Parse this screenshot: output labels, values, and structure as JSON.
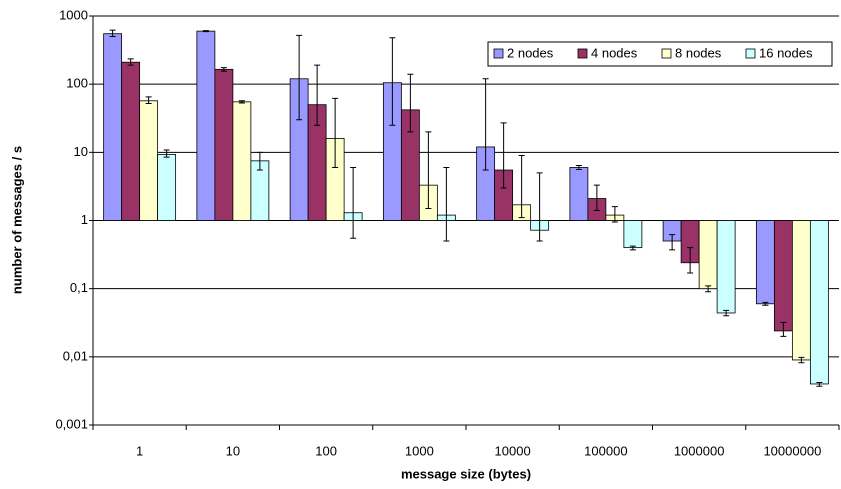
{
  "chart_data": {
    "type": "bar",
    "log_scale": true,
    "grid": true,
    "legend": "top-right",
    "xlabel": "message size (bytes)",
    "ylabel": "number of messages / s",
    "categories": [
      "1",
      "10",
      "100",
      "1000",
      "10000",
      "100000",
      "1000000",
      "10000000"
    ],
    "series": [
      {
        "name": "2 nodes",
        "color": "#9999ff",
        "values": [
          550,
          600,
          120,
          105,
          12,
          6,
          0.5,
          0.06
        ],
        "low": [
          500,
          590,
          30,
          25,
          5.5,
          5.6,
          0.37,
          0.057
        ],
        "high": [
          620,
          610,
          520,
          480,
          120,
          6.4,
          0.62,
          0.063
        ]
      },
      {
        "name": "4 nodes",
        "color": "#993366",
        "values": [
          210,
          165,
          50,
          42,
          5.5,
          2.1,
          0.24,
          0.024
        ],
        "low": [
          190,
          155,
          25,
          20,
          3,
          1.4,
          0.17,
          0.02
        ],
        "high": [
          235,
          175,
          190,
          140,
          27,
          3.3,
          0.4,
          0.032
        ]
      },
      {
        "name": "8 nodes",
        "color": "#ffffcc",
        "values": [
          57,
          55,
          16,
          3.3,
          1.7,
          1.2,
          0.1,
          0.009
        ],
        "low": [
          52,
          53,
          6,
          1.5,
          1.1,
          0.95,
          0.09,
          0.0082
        ],
        "high": [
          65,
          57,
          62,
          20,
          9,
          1.6,
          0.11,
          0.0098
        ]
      },
      {
        "name": "16 nodes",
        "color": "#ccffff",
        "values": [
          9.3,
          7.5,
          1.3,
          1.2,
          0.72,
          0.4,
          0.044,
          0.004
        ],
        "low": [
          8.5,
          5.5,
          0.55,
          0.5,
          0.5,
          0.37,
          0.04,
          0.0037
        ],
        "high": [
          10.8,
          10,
          6,
          6,
          5,
          0.42,
          0.048,
          0.0042
        ]
      }
    ],
    "ylim": [
      0.001,
      1000
    ],
    "yticks": [
      1000,
      100,
      10,
      1,
      {
        "value": 0.1,
        "label": "0,1"
      },
      {
        "value": 0.01,
        "label": "0,01"
      },
      {
        "value": 0.001,
        "label": "0,001"
      }
    ]
  }
}
